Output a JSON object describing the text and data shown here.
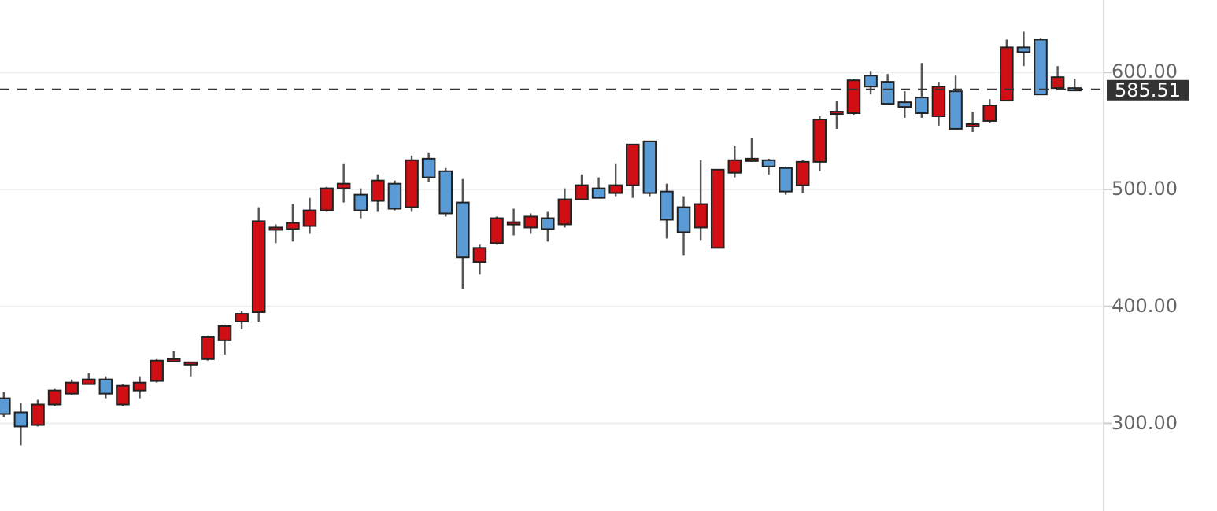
{
  "chart_data": {
    "type": "candlestick",
    "categories": [
      null,
      null,
      null,
      null,
      null,
      null,
      null,
      null,
      null,
      null,
      null,
      null,
      null,
      null,
      null,
      null,
      null,
      null,
      null,
      null,
      null,
      null,
      null,
      null,
      null,
      null,
      null,
      null,
      null,
      null,
      null,
      null,
      null,
      null,
      null,
      null,
      null,
      null,
      null,
      null,
      null,
      null,
      null,
      null,
      null,
      null,
      null,
      null,
      null,
      null,
      null,
      null,
      null,
      null,
      null,
      null,
      null,
      null,
      null,
      null,
      null,
      null,
      null,
      null
    ],
    "ohlc": [
      [
        321.4,
        326.8,
        305.3,
        308.0
      ],
      [
        309.4,
        317.4,
        281.2,
        297.3
      ],
      [
        298.6,
        320.1,
        297.3,
        316.1
      ],
      [
        316.1,
        329.4,
        314.7,
        328.1
      ],
      [
        325.4,
        337.5,
        324.1,
        334.8
      ],
      [
        333.5,
        342.9,
        333.5,
        337.5
      ],
      [
        337.5,
        340.2,
        321.4,
        325.4
      ],
      [
        316.1,
        333.5,
        314.7,
        332.1
      ],
      [
        328.1,
        340.2,
        321.4,
        334.8
      ],
      [
        336.2,
        354.9,
        334.8,
        353.6
      ],
      [
        353.6,
        361.6,
        353.6,
        354.9
      ],
      [
        351.5,
        352.5,
        340.2,
        352.2
      ],
      [
        354.9,
        375.0,
        353.6,
        373.7
      ],
      [
        371.0,
        384.4,
        358.9,
        383.0
      ],
      [
        387.0,
        396.4,
        380.4,
        393.7
      ],
      [
        395.1,
        484.8,
        387.0,
        472.8
      ],
      [
        466.7,
        470.1,
        454.0,
        467.4
      ],
      [
        466.1,
        487.5,
        455.4,
        471.4
      ],
      [
        468.7,
        492.8,
        462.0,
        482.1
      ],
      [
        482.1,
        502.2,
        480.8,
        500.9
      ],
      [
        500.9,
        522.3,
        488.8,
        504.9
      ],
      [
        495.5,
        500.9,
        475.4,
        482.1
      ],
      [
        490.2,
        512.9,
        480.8,
        507.6
      ],
      [
        504.9,
        507.6,
        482.1,
        483.5
      ],
      [
        484.8,
        529.0,
        480.8,
        525.0
      ],
      [
        526.3,
        531.7,
        506.2,
        510.3
      ],
      [
        515.6,
        518.3,
        476.8,
        479.5
      ],
      [
        488.8,
        508.9,
        415.2,
        442.0
      ],
      [
        438.0,
        452.7,
        427.2,
        450.0
      ],
      [
        454.0,
        476.8,
        452.7,
        475.4
      ],
      [
        471.4,
        483.5,
        460.7,
        472.0
      ],
      [
        467.4,
        479.5,
        462.0,
        476.8
      ],
      [
        475.4,
        480.8,
        455.4,
        466.1
      ],
      [
        470.1,
        500.9,
        467.4,
        491.5
      ],
      [
        491.5,
        512.9,
        491.5,
        503.6
      ],
      [
        500.9,
        510.3,
        492.8,
        492.8
      ],
      [
        496.9,
        522.3,
        494.2,
        503.6
      ],
      [
        503.6,
        538.4,
        492.8,
        538.4
      ],
      [
        541.1,
        541.1,
        494.2,
        496.9
      ],
      [
        498.2,
        504.9,
        458.0,
        474.1
      ],
      [
        484.8,
        494.2,
        443.3,
        463.4
      ],
      [
        467.4,
        525.0,
        456.7,
        487.5
      ],
      [
        450.0,
        516.9,
        450.0,
        516.9
      ],
      [
        514.3,
        537.0,
        510.3,
        525.0
      ],
      [
        525.7,
        543.7,
        523.6,
        526.3
      ],
      [
        525.0,
        526.3,
        512.9,
        519.6
      ],
      [
        518.3,
        519.6,
        495.5,
        498.2
      ],
      [
        503.6,
        525.0,
        496.9,
        523.6
      ],
      [
        523.6,
        562.5,
        515.6,
        559.8
      ],
      [
        565.8,
        575.9,
        551.8,
        566.5
      ],
      [
        565.2,
        594.6,
        563.8,
        593.3
      ],
      [
        597.3,
        601.3,
        581.2,
        587.9
      ],
      [
        592.0,
        598.7,
        573.2,
        573.2
      ],
      [
        574.5,
        583.9,
        561.2,
        570.5
      ],
      [
        578.6,
        608.0,
        561.2,
        565.2
      ],
      [
        562.5,
        592.0,
        554.5,
        587.9
      ],
      [
        583.9,
        597.3,
        551.8,
        551.8
      ],
      [
        555.1,
        566.5,
        549.1,
        555.8
      ],
      [
        558.5,
        577.2,
        557.1,
        571.9
      ],
      [
        575.9,
        628.1,
        575.9,
        621.4
      ],
      [
        621.4,
        634.8,
        605.4,
        617.4
      ],
      [
        628.1,
        629.5,
        581.2,
        581.2
      ],
      [
        586.6,
        605.4,
        585.3,
        596.0
      ],
      [
        586.6,
        594.6,
        585.0,
        585.51
      ]
    ],
    "colors": [
      "#5b9bd5",
      "#5b9bd5",
      "#d00f14",
      "#d00f14",
      "#d00f14",
      "#d00f14",
      "#5b9bd5",
      "#d00f14",
      "#d00f14",
      "#d00f14",
      "#d00f14",
      "#d00f14",
      "#d00f14",
      "#d00f14",
      "#d00f14",
      "#d00f14",
      "#d00f14",
      "#d00f14",
      "#d00f14",
      "#d00f14",
      "#d00f14",
      "#5b9bd5",
      "#d00f14",
      "#5b9bd5",
      "#d00f14",
      "#5b9bd5",
      "#5b9bd5",
      "#5b9bd5",
      "#d00f14",
      "#d00f14",
      "#d00f14",
      "#d00f14",
      "#5b9bd5",
      "#d00f14",
      "#d00f14",
      "#5b9bd5",
      "#d00f14",
      "#d00f14",
      "#5b9bd5",
      "#5b9bd5",
      "#5b9bd5",
      "#d00f14",
      "#d00f14",
      "#d00f14",
      "#d00f14",
      "#5b9bd5",
      "#5b9bd5",
      "#d00f14",
      "#d00f14",
      "#d00f14",
      "#d00f14",
      "#5b9bd5",
      "#5b9bd5",
      "#5b9bd5",
      "#5b9bd5",
      "#d00f14",
      "#5b9bd5",
      "#d00f14",
      "#d00f14",
      "#d00f14",
      "#5b9bd5",
      "#5b9bd5",
      "#d00f14",
      "#5b9bd5"
    ],
    "ylim": [
      225,
      662
    ],
    "yticks": [
      {
        "value": 300,
        "label": "300.00"
      },
      {
        "value": 400,
        "label": "400.00"
      },
      {
        "value": 500,
        "label": "500.00"
      },
      {
        "value": 600,
        "label": "600.00"
      }
    ],
    "grid": "y",
    "ref_lines": [
      {
        "axis": "y",
        "value": 585.51,
        "label": "585.51",
        "color": "#333333",
        "line_style": "dashed"
      }
    ]
  }
}
